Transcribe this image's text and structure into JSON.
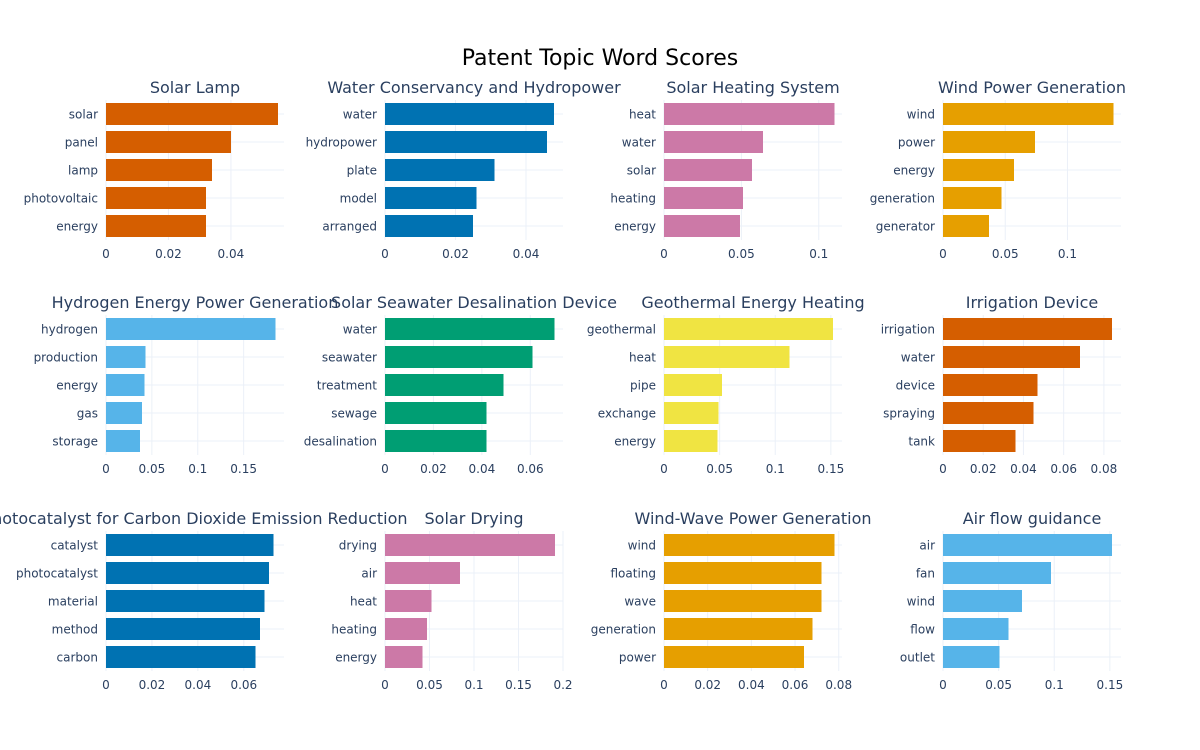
{
  "chart_data": {
    "type": "bar",
    "orientation": "horizontal",
    "title": "Patent Topic Word Scores",
    "grid": true,
    "layout": "4 columns x 3 rows",
    "panels": [
      {
        "title": "Solar Lamp",
        "color": "#D55E00",
        "categories": [
          "solar",
          "panel",
          "lamp",
          "photovoltaic",
          "energy"
        ],
        "values": [
          0.055,
          0.04,
          0.034,
          0.032,
          0.032
        ],
        "xlim": [
          0,
          0.057
        ],
        "xticks": [
          0,
          0.02,
          0.04
        ],
        "xtick_labels": [
          "0",
          "0.02",
          "0.04"
        ]
      },
      {
        "title": "Water Conservancy and Hydropower",
        "color": "#0072B2",
        "categories": [
          "water",
          "hydropower",
          "plate",
          "model",
          "arranged"
        ],
        "values": [
          0.048,
          0.046,
          0.031,
          0.026,
          0.025
        ],
        "xlim": [
          0,
          0.0505
        ],
        "xticks": [
          0,
          0.02,
          0.04
        ],
        "xtick_labels": [
          "0",
          "0.02",
          "0.04"
        ]
      },
      {
        "title": "Solar Heating System",
        "color": "#CC79A7",
        "categories": [
          "heat",
          "water",
          "solar",
          "heating",
          "energy"
        ],
        "values": [
          0.11,
          0.064,
          0.057,
          0.051,
          0.049
        ],
        "xlim": [
          0,
          0.115
        ],
        "xticks": [
          0,
          0.05,
          0.1
        ],
        "xtick_labels": [
          "0",
          "0.05",
          "0.1"
        ]
      },
      {
        "title": "Wind Power Generation",
        "color": "#E69F00",
        "categories": [
          "wind",
          "power",
          "energy",
          "generation",
          "generator"
        ],
        "values": [
          0.137,
          0.074,
          0.057,
          0.047,
          0.037
        ],
        "xlim": [
          0,
          0.143
        ],
        "xticks": [
          0,
          0.05,
          0.1
        ],
        "xtick_labels": [
          "0",
          "0.05",
          "0.1"
        ]
      },
      {
        "title": "Hydrogen Energy Power Generation",
        "color": "#56B4E9",
        "categories": [
          "hydrogen",
          "production",
          "energy",
          "gas",
          "storage"
        ],
        "values": [
          0.185,
          0.043,
          0.042,
          0.039,
          0.037
        ],
        "xlim": [
          0,
          0.194
        ],
        "xticks": [
          0,
          0.05,
          0.1,
          0.15
        ],
        "xtick_labels": [
          "0",
          "0.05",
          "0.1",
          "0.15"
        ]
      },
      {
        "title": "Solar Seawater Desalination Device",
        "color": "#009E73",
        "categories": [
          "water",
          "seawater",
          "treatment",
          "sewage",
          "desalination"
        ],
        "values": [
          0.07,
          0.061,
          0.049,
          0.042,
          0.042
        ],
        "xlim": [
          0,
          0.0735
        ],
        "xticks": [
          0,
          0.02,
          0.04,
          0.06
        ],
        "xtick_labels": [
          "0",
          "0.02",
          "0.04",
          "0.06"
        ]
      },
      {
        "title": "Geothermal Energy Heating",
        "color": "#F0E442",
        "categories": [
          "geothermal",
          "heat",
          "pipe",
          "exchange",
          "energy"
        ],
        "values": [
          0.152,
          0.113,
          0.052,
          0.049,
          0.048
        ],
        "xlim": [
          0,
          0.16
        ],
        "xticks": [
          0,
          0.05,
          0.1,
          0.15
        ],
        "xtick_labels": [
          "0",
          "0.05",
          "0.1",
          "0.15"
        ]
      },
      {
        "title": "Irrigation Device",
        "color": "#D55E00",
        "categories": [
          "irrigation",
          "water",
          "device",
          "spraying",
          "tank"
        ],
        "values": [
          0.084,
          0.068,
          0.047,
          0.045,
          0.036
        ],
        "xlim": [
          0,
          0.0885
        ],
        "xticks": [
          0,
          0.02,
          0.04,
          0.06,
          0.08
        ],
        "xtick_labels": [
          "0",
          "0.02",
          "0.04",
          "0.06",
          "0.08"
        ]
      },
      {
        "title": "Photocatalyst for Carbon Dioxide Emission Reduction",
        "color": "#0072B2",
        "categories": [
          "catalyst",
          "photocatalyst",
          "material",
          "method",
          "carbon"
        ],
        "values": [
          0.073,
          0.071,
          0.069,
          0.067,
          0.065
        ],
        "xlim": [
          0,
          0.0775
        ],
        "xticks": [
          0,
          0.02,
          0.04,
          0.06
        ],
        "xtick_labels": [
          "0",
          "0.02",
          "0.04",
          "0.06"
        ]
      },
      {
        "title": "Solar Drying",
        "color": "#CC79A7",
        "categories": [
          "drying",
          "air",
          "heat",
          "heating",
          "energy"
        ],
        "values": [
          0.191,
          0.084,
          0.052,
          0.047,
          0.042
        ],
        "xlim": [
          0,
          0.2
        ],
        "xticks": [
          0,
          0.05,
          0.1,
          0.15,
          0.2
        ],
        "xtick_labels": [
          "0",
          "0.05",
          "0.1",
          "0.15",
          "0.2"
        ]
      },
      {
        "title": "Wind-Wave Power Generation",
        "color": "#E69F00",
        "categories": [
          "wind",
          "floating",
          "wave",
          "generation",
          "power"
        ],
        "values": [
          0.078,
          0.072,
          0.072,
          0.068,
          0.064
        ],
        "xlim": [
          0,
          0.0815
        ],
        "xticks": [
          0,
          0.02,
          0.04,
          0.06,
          0.08
        ],
        "xtick_labels": [
          "0",
          "0.02",
          "0.04",
          "0.06",
          "0.08"
        ]
      },
      {
        "title": "Air flow guidance",
        "color": "#56B4E9",
        "categories": [
          "air",
          "fan",
          "wind",
          "flow",
          "outlet"
        ],
        "values": [
          0.152,
          0.097,
          0.071,
          0.059,
          0.051
        ],
        "xlim": [
          0,
          0.16
        ],
        "xticks": [
          0,
          0.05,
          0.1,
          0.15
        ],
        "xtick_labels": [
          "0",
          "0.05",
          "0.1",
          "0.15"
        ]
      }
    ]
  }
}
